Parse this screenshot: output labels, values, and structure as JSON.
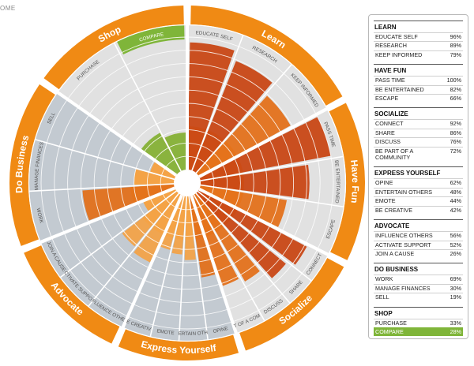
{
  "top_fragment": "OME",
  "colors": {
    "orange": "#f08a14",
    "orange_light": "#f6a443",
    "inner_fill_orange": "#f7aa4e",
    "green": "#7fb539",
    "section_gray": "#e1e1e1",
    "section_blue": "#c3cad1",
    "bar_light": "#f4a244",
    "bar_mid": "#e36e16",
    "bar_dark": "#c8420f",
    "bar_green": "#80b33c"
  },
  "chart_data": {
    "type": "radial-bar",
    "scale_max": 100,
    "ring_count": 10,
    "categories": [
      {
        "name": "Learn",
        "color": "orange",
        "subcategories": [
          {
            "label": "EDUCATE SELF",
            "value": 96
          },
          {
            "label": "RESEARCH",
            "value": 89
          },
          {
            "label": "KEEP INFORMED",
            "value": 79
          }
        ]
      },
      {
        "name": "Have Fun",
        "color": "orange",
        "subcategories": [
          {
            "label": "PASS TIME",
            "value": 100
          },
          {
            "label": "BE ENTERTAINED",
            "value": 82
          },
          {
            "label": "ESCAPE",
            "value": 66
          }
        ]
      },
      {
        "name": "Socialize",
        "color": "orange",
        "subcategories": [
          {
            "label": "CONNECT",
            "value": 92
          },
          {
            "label": "SHARE",
            "value": 86
          },
          {
            "label": "DISCUSS",
            "value": 76
          },
          {
            "label": "BE PART OF A COMMUNITY",
            "value": 72
          }
        ]
      },
      {
        "name": "Express Yourself",
        "color": "orange",
        "subcategories": [
          {
            "label": "OPINE",
            "value": 62
          },
          {
            "label": "ENTERTAIN OTHERS",
            "value": 48
          },
          {
            "label": "EMOTE",
            "value": 44
          },
          {
            "label": "BE CREATIVE",
            "value": 42
          }
        ]
      },
      {
        "name": "Advocate",
        "color": "orange",
        "subcategories": [
          {
            "label": "INFLUENCE OTHERS",
            "value": 56
          },
          {
            "label": "ACTIVATE SUPPORT",
            "value": 52
          },
          {
            "label": "JOIN A CAUSE",
            "value": 26
          }
        ]
      },
      {
        "name": "Do Business",
        "color": "orange",
        "subcategories": [
          {
            "label": "WORK",
            "value": 69
          },
          {
            "label": "MANAGE FINANCES",
            "value": 30
          },
          {
            "label": "SELL",
            "value": 19
          }
        ]
      },
      {
        "name": "Shop",
        "color": "orange",
        "subcategories": [
          {
            "label": "PURCHASE",
            "value": 33
          },
          {
            "label": "COMPARE",
            "value": 28,
            "highlight": true
          }
        ]
      }
    ],
    "wheel_labels": {
      "Learn": [
        "EDUCATE SELF",
        "RESEARCH",
        "KEEP INFORMED"
      ],
      "Have Fun": [
        "PASS TIME",
        "BE ENTERTAINED",
        "ESCAPE"
      ],
      "Socialize": [
        "CONNECT",
        "SHARE",
        "DISCUSS",
        "BE PART OF A COMMUNITY"
      ],
      "Express Yourself": [
        "OPINE",
        "ENTERTAIN OTHERS",
        "EMOTE",
        "BE CREATIVE"
      ],
      "Advocate": [
        "INFLUENCE OTHERS",
        "ACTIVATE SUPPORT",
        "JOIN A CAUSE"
      ],
      "Do Business": [
        "WORK",
        "MANAGE FINANCES",
        "SELL"
      ],
      "Shop": [
        "PURCHASE",
        "COMPARE"
      ]
    }
  },
  "legend": [
    {
      "heading": "LEARN",
      "rows": [
        {
          "label": "EDUCATE SELF",
          "value": "96%"
        },
        {
          "label": "RESEARCH",
          "value": "89%"
        },
        {
          "label": "KEEP INFORMED",
          "value": "79%"
        }
      ]
    },
    {
      "heading": "HAVE FUN",
      "rows": [
        {
          "label": "PASS TIME",
          "value": "100%"
        },
        {
          "label": "BE ENTERTAINED",
          "value": "82%"
        },
        {
          "label": "ESCAPE",
          "value": "66%"
        }
      ]
    },
    {
      "heading": "SOCIALIZE",
      "rows": [
        {
          "label": "CONNECT",
          "value": "92%"
        },
        {
          "label": "SHARE",
          "value": "86%"
        },
        {
          "label": "DISCUSS",
          "value": "76%"
        },
        {
          "label": "BE PART OF A COMMUNITY",
          "value": "72%"
        }
      ]
    },
    {
      "heading": "EXPRESS YOURSELF",
      "rows": [
        {
          "label": "OPINE",
          "value": "62%"
        },
        {
          "label": "ENTERTAIN OTHERS",
          "value": "48%"
        },
        {
          "label": "EMOTE",
          "value": "44%"
        },
        {
          "label": "BE CREATIVE",
          "value": "42%"
        }
      ]
    },
    {
      "heading": "ADVOCATE",
      "rows": [
        {
          "label": "INFLUENCE OTHERS",
          "value": "56%"
        },
        {
          "label": "ACTIVATE SUPPORT",
          "value": "52%"
        },
        {
          "label": "JOIN A CAUSE",
          "value": "26%"
        }
      ]
    },
    {
      "heading": "DO BUSINESS",
      "rows": [
        {
          "label": "WORK",
          "value": "69%"
        },
        {
          "label": "MANAGE FINANCES",
          "value": "30%"
        },
        {
          "label": "SELL",
          "value": "19%"
        }
      ]
    },
    {
      "heading": "SHOP",
      "rows": [
        {
          "label": "PURCHASE",
          "value": "33%"
        },
        {
          "label": "COMPARE",
          "value": "28%",
          "highlight": true
        }
      ]
    }
  ]
}
